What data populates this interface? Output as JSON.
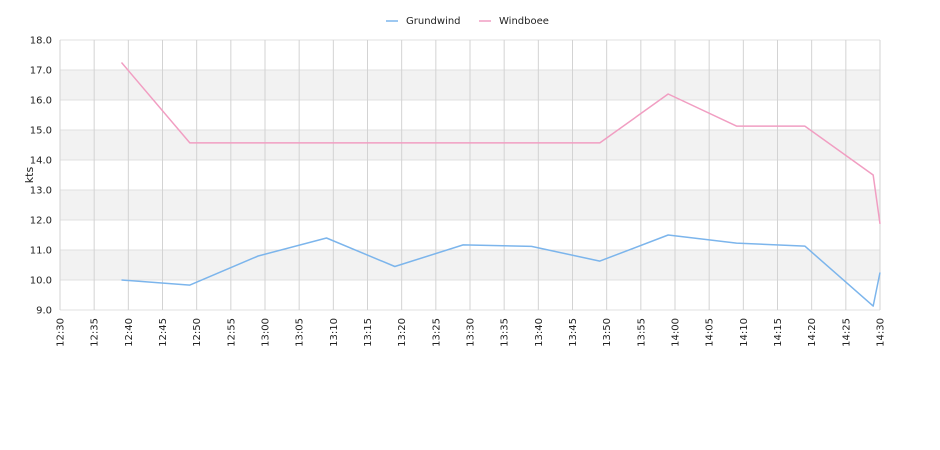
{
  "chart_data": {
    "type": "line",
    "title": "",
    "xlabel": "",
    "ylabel": "kts",
    "ylim": [
      9.0,
      18.0
    ],
    "y_ticks": [
      "9.0",
      "10.0",
      "11.0",
      "12.0",
      "13.0",
      "14.0",
      "15.0",
      "16.0",
      "17.0",
      "18.0"
    ],
    "x_ticks": [
      "12:30",
      "12:35",
      "12:40",
      "12:45",
      "12:50",
      "12:55",
      "13:00",
      "13:05",
      "13:10",
      "13:15",
      "13:20",
      "13:25",
      "13:30",
      "13:35",
      "13:40",
      "13:45",
      "13:50",
      "13:55",
      "14:00",
      "14:05",
      "14:10",
      "14:15",
      "14:20",
      "14:25",
      "14:30"
    ],
    "xlim": [
      "12:30",
      "14:30"
    ],
    "grid": true,
    "legend_position": "top-center",
    "series": [
      {
        "name": "Grundwind",
        "color": "#7cb5ec",
        "points": [
          [
            "12:39",
            10.0
          ],
          [
            "12:49",
            9.83
          ],
          [
            "12:59",
            10.8
          ],
          [
            "13:09",
            11.4
          ],
          [
            "13:19",
            10.45
          ],
          [
            "13:29",
            11.17
          ],
          [
            "13:39",
            11.12
          ],
          [
            "13:49",
            10.63
          ],
          [
            "13:59",
            11.5
          ],
          [
            "14:09",
            11.23
          ],
          [
            "14:19",
            11.13
          ],
          [
            "14:29",
            9.13
          ],
          [
            "14:30",
            10.25
          ]
        ]
      },
      {
        "name": "Windboee",
        "color": "#f19ec2",
        "points": [
          [
            "12:39",
            17.25
          ],
          [
            "12:49",
            14.57
          ],
          [
            "12:59",
            14.57
          ],
          [
            "13:09",
            14.57
          ],
          [
            "13:19",
            14.57
          ],
          [
            "13:29",
            14.57
          ],
          [
            "13:39",
            14.57
          ],
          [
            "13:49",
            14.57
          ],
          [
            "13:59",
            16.2
          ],
          [
            "14:09",
            15.13
          ],
          [
            "14:19",
            15.13
          ],
          [
            "14:29",
            13.5
          ],
          [
            "14:30",
            11.87
          ]
        ]
      }
    ]
  }
}
